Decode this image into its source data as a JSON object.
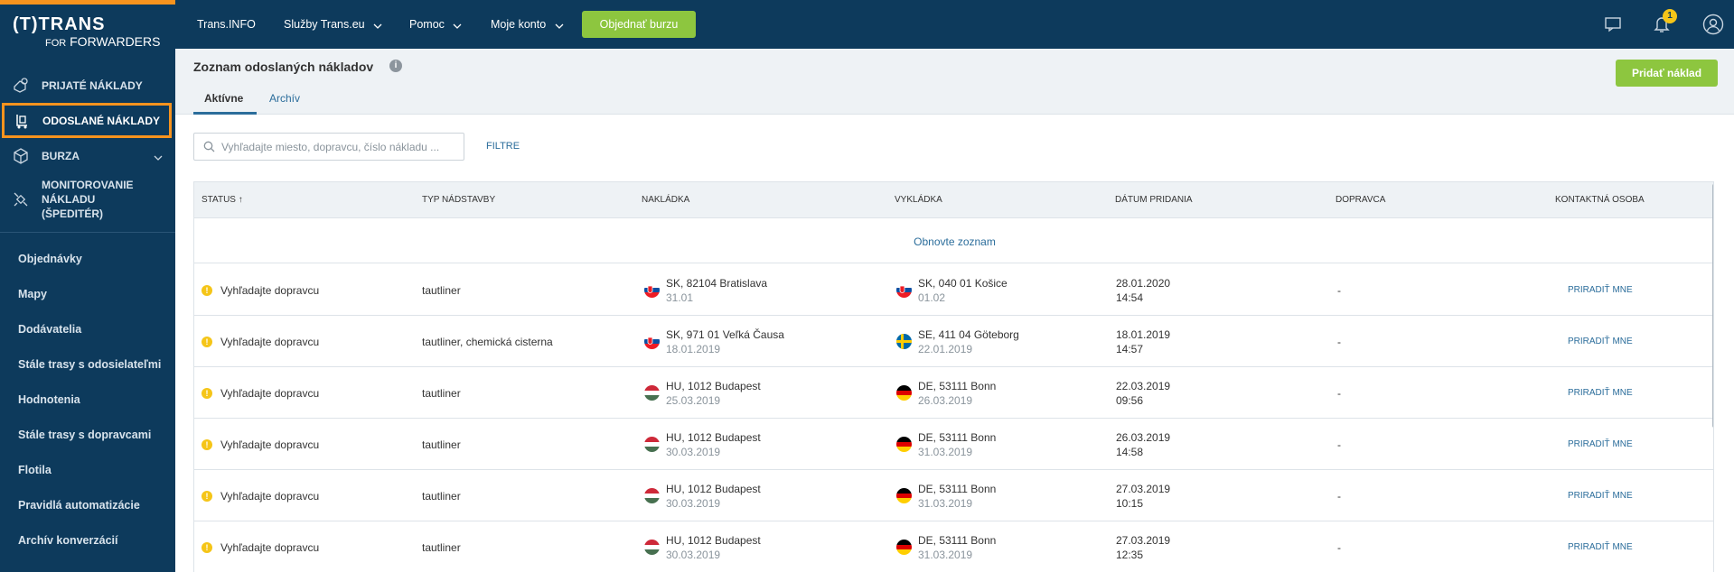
{
  "sidebar": {
    "logo": {
      "line1": "(T)TRANS",
      "line2_small": "FOR",
      "line2_big": "FORWARDERS"
    },
    "main_items": [
      {
        "label": "PRIJATÉ NÁKLADY",
        "icon": "received-loads-icon"
      },
      {
        "label": "ODOSLANÉ NÁKLADY",
        "icon": "sent-loads-icon"
      },
      {
        "label": "BURZA",
        "icon": "box-icon"
      },
      {
        "label": "MONITOROVANIE NÁKLADU (ŠPEDITÉR)",
        "icon": "satellite-icon"
      }
    ],
    "sub_items": [
      {
        "label": "Objednávky"
      },
      {
        "label": "Mapy"
      },
      {
        "label": "Dodávatelia"
      },
      {
        "label": "Stále trasy s odosielateľmi"
      },
      {
        "label": "Hodnotenia"
      },
      {
        "label": "Stále trasy s dopravcami"
      },
      {
        "label": "Flotila"
      },
      {
        "label": "Pravidlá automatizácie"
      },
      {
        "label": "Archív konverzácií"
      }
    ]
  },
  "topbar": {
    "nav": [
      {
        "label": "Trans.INFO"
      },
      {
        "label": "Služby Trans.eu"
      },
      {
        "label": "Pomoc"
      },
      {
        "label": "Moje konto"
      }
    ],
    "order_button": "Objednať burzu",
    "notification_count": "1"
  },
  "header": {
    "title": "Zoznam odoslaných nákladov",
    "tabs": [
      {
        "label": "Aktívne"
      },
      {
        "label": "Archív"
      }
    ],
    "add_button": "Pridať náklad"
  },
  "search": {
    "placeholder": "Vyhľadajte miesto, dopravcu, číslo nákladu ...",
    "value": ""
  },
  "filters_label": "FILTRE",
  "table": {
    "columns": [
      {
        "label": "STATUS ↑"
      },
      {
        "label": "TYP NÁDSTAVBY"
      },
      {
        "label": "NAKLÁDKA"
      },
      {
        "label": "VYKLÁDKA"
      },
      {
        "label": "DÁTUM PRIDANIA"
      },
      {
        "label": "DOPRAVCA"
      },
      {
        "label": "KONTAKTNÁ OSOBA"
      }
    ],
    "refresh_label": "Obnovte zoznam",
    "rows": [
      {
        "status": "Vyhľadajte dopravcu",
        "body": "tautliner",
        "load_place": "SK, 82104 Bratislava",
        "load_date": "31.01",
        "load_flag": "SK",
        "unload_place": "SK, 040 01 Košice",
        "unload_date": "01.02",
        "unload_flag": "SK",
        "added_date": "28.01.2020",
        "added_time": "14:54",
        "carrier": "-",
        "contact": "PRIRADIŤ MNE"
      },
      {
        "status": "Vyhľadajte dopravcu",
        "body": "tautliner, chemická cisterna",
        "load_place": "SK, 971 01 Veľká Čausa",
        "load_date": "18.01.2019",
        "load_flag": "SK",
        "unload_place": "SE, 411 04 Göteborg",
        "unload_date": "22.01.2019",
        "unload_flag": "SE",
        "added_date": "18.01.2019",
        "added_time": "14:57",
        "carrier": "-",
        "contact": "PRIRADIŤ MNE"
      },
      {
        "status": "Vyhľadajte dopravcu",
        "body": "tautliner",
        "load_place": "HU, 1012 Budapest",
        "load_date": "25.03.2019",
        "load_flag": "HU",
        "unload_place": "DE, 53111 Bonn",
        "unload_date": "26.03.2019",
        "unload_flag": "DE",
        "added_date": "22.03.2019",
        "added_time": "09:56",
        "carrier": "-",
        "contact": "PRIRADIŤ MNE"
      },
      {
        "status": "Vyhľadajte dopravcu",
        "body": "tautliner",
        "load_place": "HU, 1012 Budapest",
        "load_date": "30.03.2019",
        "load_flag": "HU",
        "unload_place": "DE, 53111 Bonn",
        "unload_date": "31.03.2019",
        "unload_flag": "DE",
        "added_date": "26.03.2019",
        "added_time": "14:58",
        "carrier": "-",
        "contact": "PRIRADIŤ MNE"
      },
      {
        "status": "Vyhľadajte dopravcu",
        "body": "tautliner",
        "load_place": "HU, 1012 Budapest",
        "load_date": "30.03.2019",
        "load_flag": "HU",
        "unload_place": "DE, 53111 Bonn",
        "unload_date": "31.03.2019",
        "unload_flag": "DE",
        "added_date": "27.03.2019",
        "added_time": "10:15",
        "carrier": "-",
        "contact": "PRIRADIŤ MNE"
      },
      {
        "status": "Vyhľadajte dopravcu",
        "body": "tautliner",
        "load_place": "HU, 1012 Budapest",
        "load_date": "30.03.2019",
        "load_flag": "HU",
        "unload_place": "DE, 53111 Bonn",
        "unload_date": "31.03.2019",
        "unload_flag": "DE",
        "added_date": "27.03.2019",
        "added_time": "12:35",
        "carrier": "-",
        "contact": "PRIRADIŤ MNE"
      }
    ]
  },
  "colors": {
    "navy": "#0d3a5c",
    "accent_orange": "#f7931e",
    "green": "#8dc63f",
    "link_blue": "#2b6d9b",
    "warning_yellow": "#f5c518"
  }
}
